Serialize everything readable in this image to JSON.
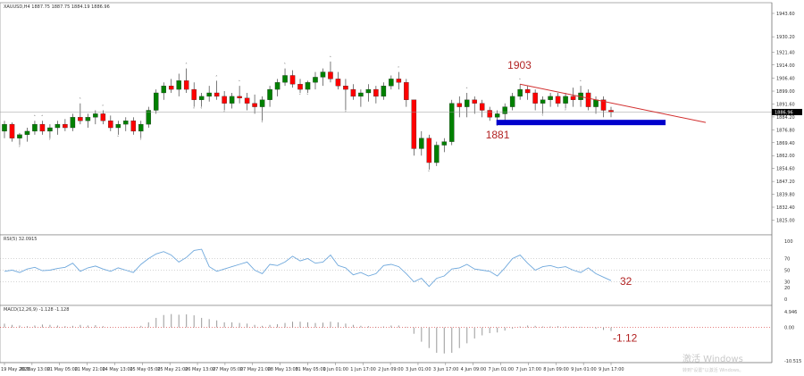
{
  "header": {
    "symbol_line": "XAUUSD,H4  1887.75 1887.75 1884.19 1886.96"
  },
  "price_panel": {
    "current_price_label": "1886.96",
    "y_ticks": [
      "1943.60",
      "1930.20",
      "1921.40",
      "1914.00",
      "1906.40",
      "1899.00",
      "1891.60",
      "1884.20",
      "1876.80",
      "1869.40",
      "1862.00",
      "1854.60",
      "1847.20",
      "1839.80",
      "1832.40",
      "1825.00"
    ],
    "annotations": {
      "high_label": "1903",
      "low_label": "1881"
    },
    "colors": {
      "bull": "#008000",
      "bear": "#ff0000",
      "trendline": "#d22f2f",
      "support": "#0000cc"
    }
  },
  "rsi_panel": {
    "title": "RSI(5) 32.0915",
    "y_ticks": [
      "100",
      "70",
      "50",
      "30",
      "20",
      "0"
    ],
    "value_label": "32"
  },
  "macd_panel": {
    "title": "MACD(12,26,9) -1.128 -1.128",
    "y_ticks": [
      "4.946",
      "0.00",
      "-10.515"
    ],
    "value_label": "-1.12"
  },
  "x_axis": {
    "labels": [
      "19 May 2021",
      "20 May 13:00",
      "21 May 05:00",
      "21 May 21:00",
      "24 May 13:00",
      "25 May 05:00",
      "25 May 21:00",
      "26 May 13:00",
      "27 May 05:00",
      "27 May 21:00",
      "28 May 13:00",
      "31 May 05:00",
      "1 Jun 01:00",
      "1 Jun 17:00",
      "2 Jun 09:00",
      "3 Jun 01:00",
      "3 Jun 17:00",
      "4 Jun 09:00",
      "7 Jun 01:00",
      "7 Jun 17:00",
      "8 Jun 09:00",
      "9 Jun 01:00",
      "9 Jun 17:00"
    ]
  },
  "watermark": {
    "line1": "激活 Windows",
    "line2": "转到\"设置\"以激活 Windows。"
  },
  "chart_data": [
    {
      "type": "candlestick",
      "series": [
        {
          "name": "XAUUSD H4",
          "ohlc": [
            [
              1876,
              1882,
              1872,
              1880
            ],
            [
              1880,
              1881,
              1870,
              1872
            ],
            [
              1872,
              1875,
              1868,
              1874
            ],
            [
              1874,
              1878,
              1870,
              1876
            ],
            [
              1876,
              1882,
              1874,
              1880
            ],
            [
              1880,
              1882,
              1874,
              1876
            ],
            [
              1876,
              1880,
              1872,
              1878
            ],
            [
              1878,
              1882,
              1874,
              1880
            ],
            [
              1880,
              1883,
              1876,
              1878
            ],
            [
              1878,
              1886,
              1876,
              1884
            ],
            [
              1884,
              1892,
              1880,
              1882
            ],
            [
              1882,
              1886,
              1878,
              1884
            ],
            [
              1884,
              1888,
              1880,
              1886
            ],
            [
              1886,
              1888,
              1880,
              1882
            ],
            [
              1882,
              1885,
              1876,
              1878
            ],
            [
              1878,
              1882,
              1874,
              1880
            ],
            [
              1880,
              1884,
              1876,
              1882
            ],
            [
              1882,
              1884,
              1874,
              1876
            ],
            [
              1876,
              1882,
              1872,
              1880
            ],
            [
              1880,
              1890,
              1878,
              1888
            ],
            [
              1888,
              1900,
              1886,
              1898
            ],
            [
              1898,
              1904,
              1894,
              1902
            ],
            [
              1902,
              1906,
              1898,
              1900
            ],
            [
              1900,
              1909,
              1896,
              1905
            ],
            [
              1905,
              1912,
              1898,
              1900
            ],
            [
              1900,
              1904,
              1890,
              1894
            ],
            [
              1894,
              1898,
              1890,
              1896
            ],
            [
              1896,
              1902,
              1893,
              1898
            ],
            [
              1898,
              1905,
              1894,
              1896
            ],
            [
              1896,
              1899,
              1888,
              1892
            ],
            [
              1892,
              1898,
              1889,
              1896
            ],
            [
              1896,
              1902,
              1892,
              1895
            ],
            [
              1895,
              1898,
              1888,
              1892
            ],
            [
              1892,
              1897,
              1886,
              1890
            ],
            [
              1890,
              1896,
              1882,
              1894
            ],
            [
              1894,
              1902,
              1890,
              1900
            ],
            [
              1900,
              1906,
              1896,
              1904
            ],
            [
              1904,
              1912,
              1902,
              1908
            ],
            [
              1908,
              1911,
              1901,
              1903
            ],
            [
              1903,
              1906,
              1898,
              1900
            ],
            [
              1900,
              1905,
              1898,
              1904
            ],
            [
              1904,
              1910,
              1900,
              1907
            ],
            [
              1907,
              1912,
              1902,
              1910
            ],
            [
              1910,
              1916,
              1904,
              1906
            ],
            [
              1906,
              1910,
              1900,
              1902
            ],
            [
              1902,
              1906,
              1888,
              1900
            ],
            [
              1900,
              1903,
              1894,
              1896
            ],
            [
              1896,
              1900,
              1890,
              1898
            ],
            [
              1898,
              1903,
              1893,
              1900
            ],
            [
              1900,
              1902,
              1892,
              1896
            ],
            [
              1896,
              1904,
              1894,
              1902
            ],
            [
              1902,
              1908,
              1900,
              1906
            ],
            [
              1906,
              1910,
              1900,
              1904
            ],
            [
              1904,
              1906,
              1890,
              1894
            ],
            [
              1894,
              1894,
              1862,
              1866
            ],
            [
              1866,
              1876,
              1862,
              1872
            ],
            [
              1872,
              1874,
              1854,
              1858
            ],
            [
              1858,
              1870,
              1856,
              1868
            ],
            [
              1868,
              1872,
              1864,
              1870
            ],
            [
              1870,
              1894,
              1868,
              1892
            ],
            [
              1892,
              1896,
              1884,
              1890
            ],
            [
              1890,
              1898,
              1884,
              1894
            ],
            [
              1894,
              1896,
              1886,
              1892
            ],
            [
              1892,
              1894,
              1884,
              1888
            ],
            [
              1888,
              1890,
              1882,
              1884
            ],
            [
              1884,
              1888,
              1880,
              1886
            ],
            [
              1886,
              1892,
              1882,
              1890
            ],
            [
              1890,
              1898,
              1888,
              1896
            ],
            [
              1896,
              1903,
              1894,
              1900
            ],
            [
              1900,
              1902,
              1894,
              1898
            ],
            [
              1898,
              1900,
              1888,
              1892
            ],
            [
              1892,
              1896,
              1886,
              1894
            ],
            [
              1894,
              1898,
              1890,
              1896
            ],
            [
              1896,
              1898,
              1890,
              1892
            ],
            [
              1892,
              1898,
              1889,
              1896
            ],
            [
              1896,
              1901,
              1890,
              1894
            ],
            [
              1894,
              1902,
              1890,
              1898
            ],
            [
              1898,
              1900,
              1888,
              1890
            ],
            [
              1890,
              1896,
              1886,
              1894
            ],
            [
              1894,
              1896,
              1884,
              1888
            ],
            [
              1888,
              1890,
              1884,
              1887
            ]
          ]
        }
      ],
      "trendline": {
        "from_price": 1903,
        "to_price": 1881
      }
    },
    {
      "type": "line",
      "series": [
        {
          "name": "RSI(5)",
          "values": [
            48,
            50,
            46,
            52,
            55,
            49,
            50,
            53,
            55,
            62,
            48,
            54,
            57,
            52,
            48,
            54,
            50,
            46,
            60,
            70,
            78,
            82,
            76,
            64,
            72,
            84,
            86,
            56,
            48,
            52,
            56,
            60,
            64,
            50,
            44,
            60,
            58,
            64,
            74,
            66,
            70,
            62,
            64,
            76,
            58,
            54,
            42,
            46,
            40,
            44,
            58,
            60,
            56,
            44,
            30,
            36,
            22,
            36,
            40,
            52,
            54,
            60,
            52,
            50,
            48,
            40,
            54,
            70,
            76,
            62,
            50,
            56,
            58,
            54,
            56,
            50,
            46,
            54,
            44,
            38,
            32
          ]
        }
      ],
      "ylim": [
        0,
        100
      ]
    },
    {
      "type": "bar",
      "series": [
        {
          "name": "MACD(12,26,9)",
          "values": [
            1.2,
            0.8,
            0.6,
            0.4,
            0.6,
            0.9,
            0.8,
            0.6,
            0.4,
            0.5,
            0.8,
            0.6,
            0.7,
            0.4,
            0.1,
            0.0,
            0.2,
            0.1,
            0.5,
            1.6,
            3.0,
            3.9,
            4.2,
            4.0,
            4.1,
            3.8,
            3.0,
            2.6,
            2.2,
            1.6,
            1.6,
            1.4,
            1.2,
            0.8,
            0.5,
            0.8,
            1.0,
            1.4,
            1.8,
            1.8,
            1.6,
            1.4,
            1.5,
            1.8,
            1.6,
            1.2,
            0.8,
            0.5,
            0.4,
            0.2,
            0.3,
            0.6,
            0.6,
            0.2,
            -2.0,
            -4.5,
            -6.5,
            -8.0,
            -8.2,
            -8.0,
            -6.5,
            -5.0,
            -3.5,
            -2.5,
            -1.8,
            -1.6,
            -1.0,
            -0.4,
            0.3,
            0.6,
            0.5,
            0.3,
            0.3,
            0.4,
            0.3,
            0.2,
            0.2,
            0.1,
            -0.4,
            -0.8,
            -1.12
          ]
        }
      ],
      "ylim": [
        -10.515,
        4.946
      ]
    }
  ]
}
